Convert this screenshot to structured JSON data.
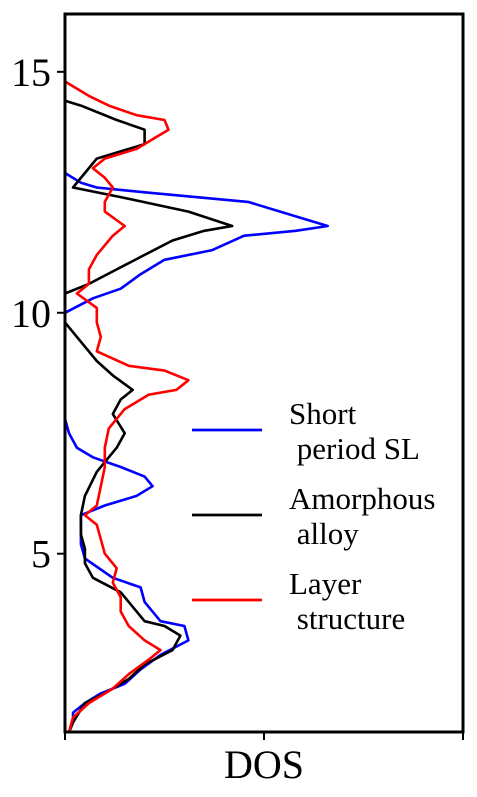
{
  "chart_data": {
    "type": "line",
    "orientation": "horizontal",
    "xlabel": "DOS",
    "ylabel": "",
    "ylim": [
      1.3,
      16.2
    ],
    "xlim": [
      0,
      1
    ],
    "yticks": [
      5,
      10,
      15
    ],
    "xticks": [
      0,
      0.5,
      1.0
    ],
    "xtick_labels_visible": false,
    "grid": false,
    "legend_position": "center-right",
    "series": [
      {
        "name": "Short\n period SL",
        "color": "#0000ff",
        "points": [
          [
            0.01,
            1.3
          ],
          [
            0.02,
            1.5
          ],
          [
            0.02,
            1.7
          ],
          [
            0.05,
            1.9
          ],
          [
            0.09,
            2.1
          ],
          [
            0.15,
            2.3
          ],
          [
            0.19,
            2.6
          ],
          [
            0.24,
            2.9
          ],
          [
            0.31,
            3.2
          ],
          [
            0.3,
            3.5
          ],
          [
            0.24,
            3.6
          ],
          [
            0.2,
            4.0
          ],
          [
            0.19,
            4.3
          ],
          [
            0.12,
            4.5
          ],
          [
            0.05,
            4.9
          ],
          [
            0.04,
            5.2
          ],
          [
            0.04,
            5.5
          ],
          [
            0.04,
            5.8
          ],
          [
            0.1,
            6.0
          ],
          [
            0.18,
            6.2
          ],
          [
            0.22,
            6.4
          ],
          [
            0.2,
            6.6
          ],
          [
            0.14,
            6.8
          ],
          [
            0.07,
            7.0
          ],
          [
            0.03,
            7.2
          ],
          [
            0.01,
            7.5
          ],
          [
            0.0,
            7.8
          ],
          [
            0.0,
            10.0
          ],
          [
            0.07,
            10.3
          ],
          [
            0.14,
            10.5
          ],
          [
            0.19,
            10.8
          ],
          [
            0.25,
            11.1
          ],
          [
            0.37,
            11.3
          ],
          [
            0.45,
            11.6
          ],
          [
            0.58,
            11.7
          ],
          [
            0.66,
            11.8
          ],
          [
            0.58,
            12.0
          ],
          [
            0.46,
            12.3
          ],
          [
            0.2,
            12.5
          ],
          [
            0.08,
            12.6
          ],
          [
            0.04,
            12.7
          ],
          [
            0.0,
            12.9
          ]
        ]
      },
      {
        "name": "Amorphous\n alloy",
        "color": "#000000",
        "points": [
          [
            0.01,
            1.3
          ],
          [
            0.02,
            1.5
          ],
          [
            0.05,
            1.9
          ],
          [
            0.1,
            2.1
          ],
          [
            0.16,
            2.4
          ],
          [
            0.2,
            2.7
          ],
          [
            0.27,
            3.0
          ],
          [
            0.29,
            3.3
          ],
          [
            0.25,
            3.5
          ],
          [
            0.2,
            3.6
          ],
          [
            0.16,
            4.0
          ],
          [
            0.14,
            4.2
          ],
          [
            0.07,
            4.5
          ],
          [
            0.05,
            4.8
          ],
          [
            0.05,
            5.1
          ],
          [
            0.04,
            5.4
          ],
          [
            0.04,
            5.8
          ],
          [
            0.05,
            6.2
          ],
          [
            0.08,
            6.7
          ],
          [
            0.13,
            7.2
          ],
          [
            0.15,
            7.5
          ],
          [
            0.12,
            7.9
          ],
          [
            0.14,
            8.2
          ],
          [
            0.17,
            8.4
          ],
          [
            0.12,
            8.7
          ],
          [
            0.08,
            9.0
          ],
          [
            0.03,
            9.5
          ],
          [
            0.0,
            9.8
          ],
          [
            0.0,
            10.4
          ],
          [
            0.06,
            10.6
          ],
          [
            0.13,
            10.9
          ],
          [
            0.2,
            11.2
          ],
          [
            0.27,
            11.5
          ],
          [
            0.35,
            11.7
          ],
          [
            0.42,
            11.8
          ],
          [
            0.31,
            12.1
          ],
          [
            0.14,
            12.4
          ],
          [
            0.02,
            12.6
          ],
          [
            0.05,
            12.9
          ],
          [
            0.08,
            13.2
          ],
          [
            0.2,
            13.5
          ],
          [
            0.2,
            13.8
          ],
          [
            0.13,
            14.0
          ],
          [
            0.04,
            14.3
          ],
          [
            0.0,
            14.4
          ]
        ]
      },
      {
        "name": "Layer\n structure",
        "color": "#ff0000",
        "points": [
          [
            0.01,
            1.3
          ],
          [
            0.02,
            1.6
          ],
          [
            0.06,
            1.9
          ],
          [
            0.12,
            2.2
          ],
          [
            0.16,
            2.5
          ],
          [
            0.21,
            2.8
          ],
          [
            0.24,
            3.0
          ],
          [
            0.2,
            3.2
          ],
          [
            0.16,
            3.5
          ],
          [
            0.14,
            3.8
          ],
          [
            0.14,
            4.1
          ],
          [
            0.12,
            4.4
          ],
          [
            0.13,
            4.7
          ],
          [
            0.1,
            5.0
          ],
          [
            0.09,
            5.3
          ],
          [
            0.08,
            5.6
          ],
          [
            0.05,
            5.8
          ],
          [
            0.08,
            6.0
          ],
          [
            0.09,
            6.4
          ],
          [
            0.1,
            6.8
          ],
          [
            0.1,
            7.2
          ],
          [
            0.11,
            7.6
          ],
          [
            0.15,
            8.0
          ],
          [
            0.21,
            8.3
          ],
          [
            0.28,
            8.4
          ],
          [
            0.31,
            8.6
          ],
          [
            0.25,
            8.8
          ],
          [
            0.16,
            8.9
          ],
          [
            0.08,
            9.2
          ],
          [
            0.09,
            9.5
          ],
          [
            0.08,
            9.8
          ],
          [
            0.08,
            10.1
          ],
          [
            0.03,
            10.4
          ],
          [
            0.06,
            10.6
          ],
          [
            0.06,
            10.9
          ],
          [
            0.08,
            11.2
          ],
          [
            0.1,
            11.4
          ],
          [
            0.12,
            11.6
          ],
          [
            0.15,
            11.8
          ],
          [
            0.1,
            12.1
          ],
          [
            0.1,
            12.3
          ],
          [
            0.12,
            12.6
          ],
          [
            0.1,
            12.8
          ],
          [
            0.07,
            13.0
          ],
          [
            0.1,
            13.2
          ],
          [
            0.18,
            13.4
          ],
          [
            0.22,
            13.6
          ],
          [
            0.26,
            13.8
          ],
          [
            0.25,
            14.0
          ],
          [
            0.18,
            14.1
          ],
          [
            0.11,
            14.3
          ],
          [
            0.06,
            14.5
          ],
          [
            0.0,
            14.8
          ]
        ]
      }
    ]
  }
}
